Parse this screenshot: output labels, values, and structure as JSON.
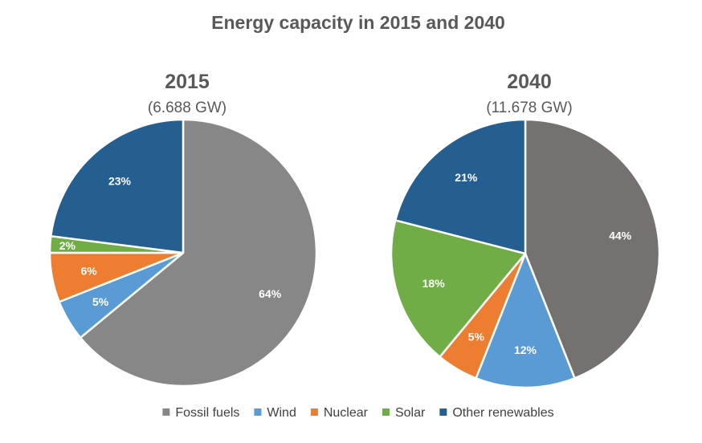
{
  "chart_data": {
    "type": "pie",
    "title": "Energy capacity in 2015 and 2040",
    "legend_position": "bottom",
    "legend": [
      {
        "name": "Fossil fuels",
        "color": "#878787"
      },
      {
        "name": "Wind",
        "color": "#5b9bd5"
      },
      {
        "name": "Nuclear",
        "color": "#ed7d31"
      },
      {
        "name": "Solar",
        "color": "#70ad47"
      },
      {
        "name": "Other renewables",
        "color": "#255e91"
      }
    ],
    "pies": [
      {
        "year": "2015",
        "subtitle": "(6.688 GW)",
        "slices": [
          {
            "name": "Fossil fuels",
            "value": 64,
            "label": "64%",
            "color": "#878787"
          },
          {
            "name": "Wind",
            "value": 5,
            "label": "5%",
            "color": "#5b9bd5"
          },
          {
            "name": "Nuclear",
            "value": 6,
            "label": "6%",
            "color": "#ed7d31"
          },
          {
            "name": "Solar",
            "value": 2,
            "label": "2%",
            "color": "#70ad47"
          },
          {
            "name": "Other renewables",
            "value": 23,
            "label": "23%",
            "color": "#255e91"
          }
        ]
      },
      {
        "year": "2040",
        "subtitle": "(11.678 GW)",
        "slices": [
          {
            "name": "Fossil fuels",
            "value": 44,
            "label": "44%",
            "color": "#767171"
          },
          {
            "name": "Wind",
            "value": 12,
            "label": "12%",
            "color": "#5b9bd5"
          },
          {
            "name": "Nuclear",
            "value": 5,
            "label": "5%",
            "color": "#ed7d31"
          },
          {
            "name": "Solar",
            "value": 18,
            "label": "18%",
            "color": "#70ad47"
          },
          {
            "name": "Other renewables",
            "value": 21,
            "label": "21%",
            "color": "#255e91"
          }
        ]
      }
    ]
  }
}
